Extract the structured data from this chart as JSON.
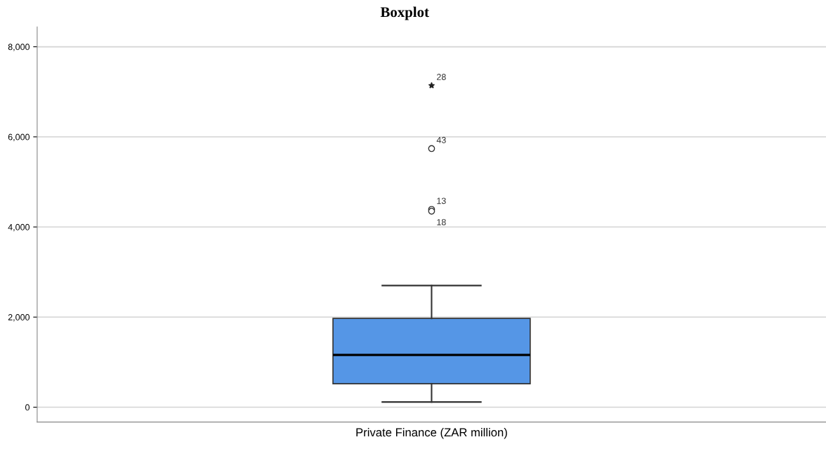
{
  "chart_data": {
    "type": "box",
    "title": "Boxplot",
    "categories": [
      "Private Finance (ZAR million)"
    ],
    "boxes": [
      {
        "low": 115,
        "q1": 520,
        "median": 1160,
        "q3": 1970,
        "high": 2700,
        "outliers": [
          7140,
          5740,
          4390,
          4350
        ]
      }
    ],
    "color": "#5596e6",
    "ylim": [
      -330,
      8440
    ],
    "yticks": [
      {
        "value": 0,
        "label": "0"
      },
      {
        "value": 2000,
        "label": "2,000"
      },
      {
        "value": 4000,
        "label": "4,000"
      },
      {
        "value": 6000,
        "label": "6,000"
      },
      {
        "value": 8000,
        "label": "8,000"
      }
    ],
    "grid": "y",
    "annotations": [
      "28",
      "43",
      "13",
      "18"
    ]
  }
}
